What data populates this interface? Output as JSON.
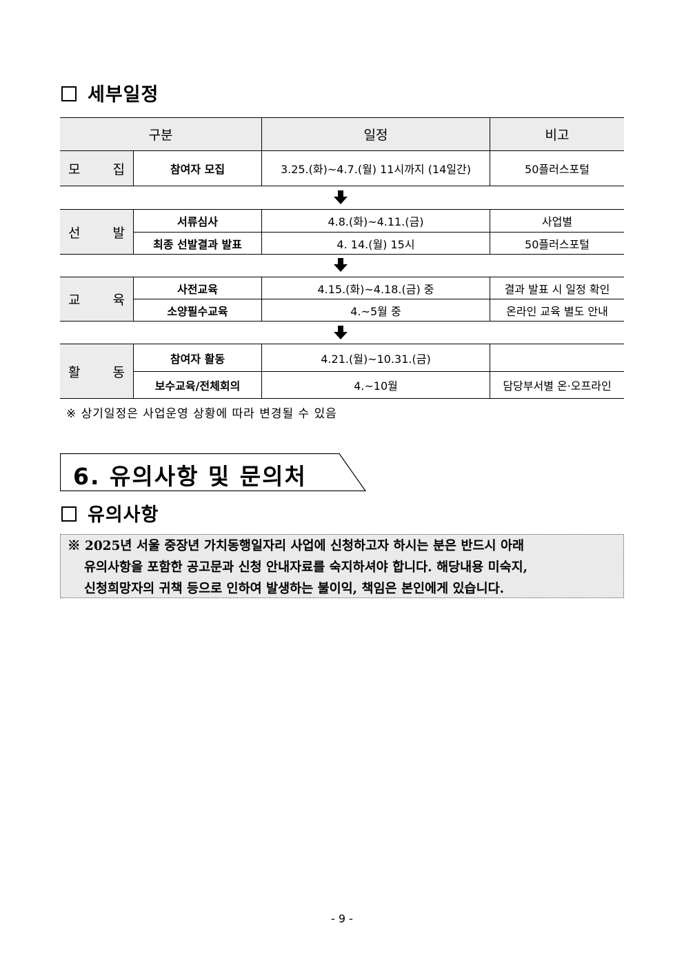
{
  "section_schedule": {
    "title": "세부일정",
    "headers": [
      "구분",
      "일정",
      "비고"
    ],
    "groups": [
      {
        "category": [
          "모",
          "집"
        ],
        "rows": [
          {
            "item": "참여자 모집",
            "date": "3.25.(화)~4.7.(월) 11시까지 (14일간)",
            "note": "50플러스포털"
          }
        ]
      },
      {
        "category": [
          "선",
          "발"
        ],
        "rows": [
          {
            "item": "서류심사",
            "date": "4.8.(화)~4.11.(금)",
            "note": "사업별"
          },
          {
            "item": "최종 선발결과 발표",
            "date": "4. 14.(월) 15시",
            "note": "50플러스포털"
          }
        ]
      },
      {
        "category": [
          "교",
          "육"
        ],
        "rows": [
          {
            "item": "사전교육",
            "date": "4.15.(화)~4.18.(금) 중",
            "note": "결과 발표 시 일정 확인"
          },
          {
            "item": "소양필수교육",
            "date": "4.~5월 중",
            "note": "온라인 교육 별도 안내"
          }
        ]
      },
      {
        "category": [
          "활",
          "동"
        ],
        "rows": [
          {
            "item": "참여자 활동",
            "date": "4.21.(월)~10.31.(금)",
            "note": ""
          },
          {
            "item": "보수교육/전체회의",
            "date": "4.~10월",
            "note": "담당부서별 온·오프라인"
          }
        ]
      }
    ],
    "footnote": "※ 상기일정은 사업운영 상황에 따라 변경될 수 있음",
    "arrow_icon": "down-arrow"
  },
  "section6": {
    "title": "6. 유의사항 및 문의처"
  },
  "cautions": {
    "title": "유의사항",
    "lines": [
      "※ 2025년 서울 중장년 가치동행일자리 사업에 신청하고자 하시는 분은 반드시 아래",
      "유의사항을 포함한 공고문과 신청 안내자료를 숙지하셔야 합니다. 해당내용 미숙지,",
      "신청희망자의 귀책 등으로 인하여 발생하는 불이익, 책임은 본인에게 있습니다."
    ]
  },
  "page_number": "- 9 -",
  "colors": {
    "cell_gray": "#ececec",
    "notice_bg": "#eaeaea"
  }
}
